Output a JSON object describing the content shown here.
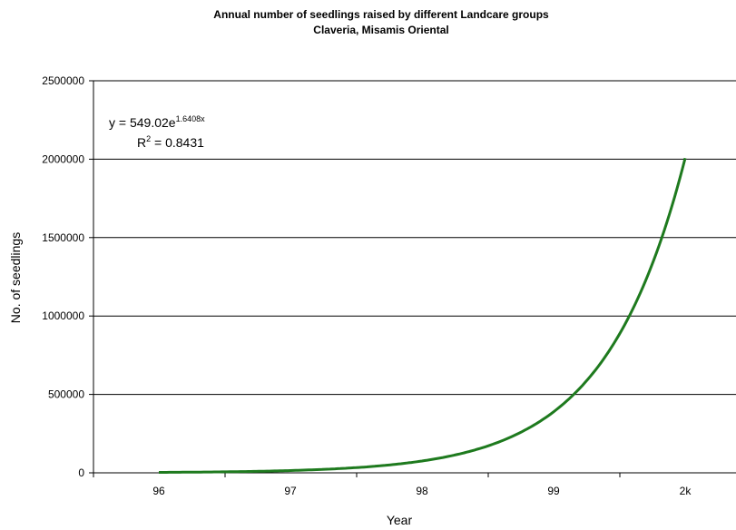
{
  "chart_data": {
    "type": "line",
    "title": "Annual number of seedlings raised by different Landcare groups",
    "subtitle": "Claveria, Misamis Oriental",
    "xlabel": "Year",
    "ylabel": "No. of seedlings",
    "categories": [
      "96",
      "97",
      "98",
      "99",
      "2k"
    ],
    "ylim": [
      0,
      2500000
    ],
    "yticks": [
      0,
      500000,
      1000000,
      1500000,
      2000000,
      2500000
    ],
    "ytick_labels": [
      "0",
      "500000",
      "1000000",
      "1500000",
      "2000000",
      "2500000"
    ],
    "trendline": {
      "kind": "exponential",
      "a": 549.02,
      "b": 1.6408,
      "equation_lhs": "y = 549.02e",
      "equation_exp": "1.6408x",
      "r2_lhs": "R",
      "r2_sup": "2",
      "r2_rhs": " = 0.8431"
    },
    "series": [
      {
        "color": "#1e7a1e"
      }
    ],
    "grid": true,
    "legend": "none"
  }
}
